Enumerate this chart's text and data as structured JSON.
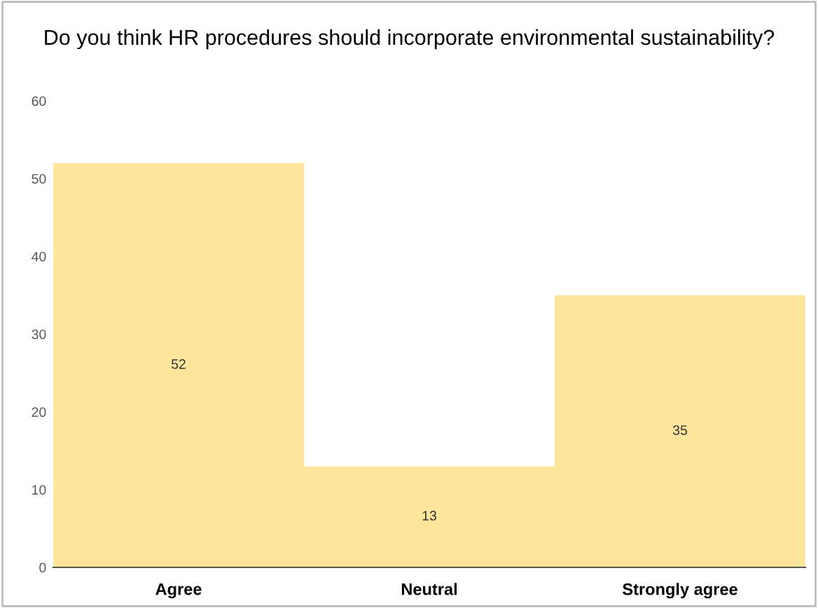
{
  "chart_data": {
    "type": "bar",
    "title": "Do you think HR procedures should incorporate environmental sustainability?",
    "categories": [
      "Agree",
      "Neutral",
      "Strongly agree"
    ],
    "values": [
      52,
      13,
      35
    ],
    "color": "#fde59c",
    "ylim": [
      0,
      60
    ],
    "yticks": [
      0,
      10,
      20,
      30,
      40,
      50,
      60
    ],
    "grid": false,
    "data_labels": true
  }
}
